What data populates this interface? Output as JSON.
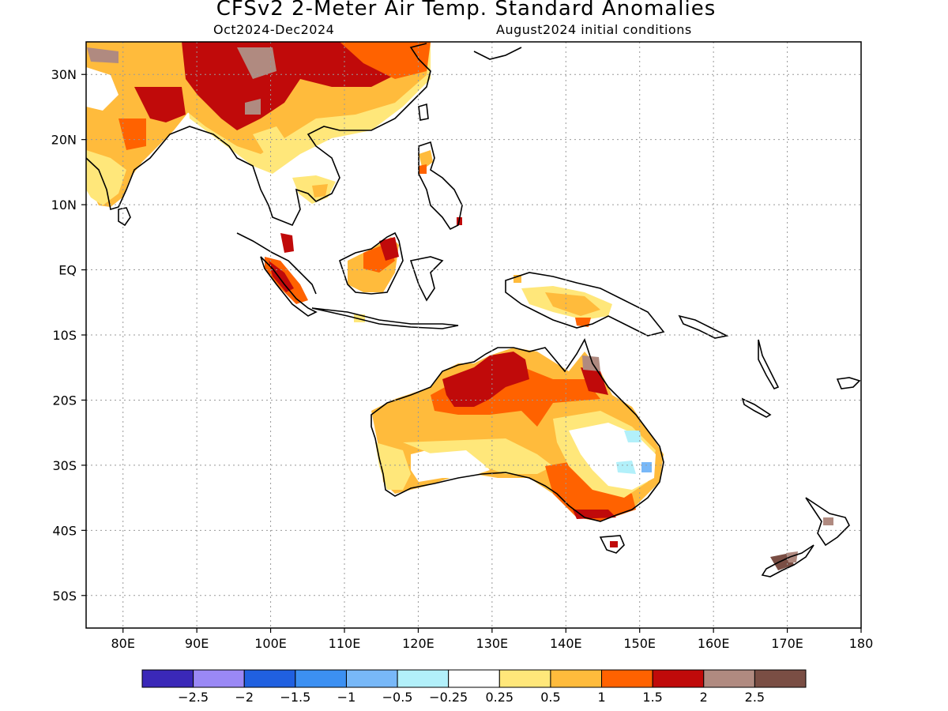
{
  "title": "CFSv2 2-Meter Air Temp. Standard Anomalies",
  "period": "Oct2024-Dec2024",
  "initial_conditions": "August2024 initial conditions",
  "map": {
    "lon_range": [
      75,
      180
    ],
    "lat_range": [
      -55,
      35
    ],
    "lon_ticks": [
      "80E",
      "90E",
      "100E",
      "110E",
      "120E",
      "130E",
      "140E",
      "150E",
      "160E",
      "170E",
      "180"
    ],
    "lat_ticks": [
      "30N",
      "20N",
      "10N",
      "EQ",
      "10S",
      "20S",
      "30S",
      "40S",
      "50S"
    ],
    "gridlines": "dotted"
  },
  "colorbar": {
    "colors": [
      "#3a28b8",
      "#9a88f5",
      "#2060e0",
      "#3c90f2",
      "#78b8f8",
      "#b2f0fa",
      "#ffffff",
      "#ffe77a",
      "#ffbb3c",
      "#ff6200",
      "#c00a0a",
      "#b08a80",
      "#7a4e44"
    ],
    "labels": [
      "−2.5",
      "−2",
      "−1.5",
      "−1",
      "−0.5",
      "−0.25",
      "0.25",
      "0.5",
      "1",
      "1.5",
      "2",
      "2.5"
    ]
  },
  "regions": [
    {
      "name": "India",
      "level": "1"
    },
    {
      "name": "Tibet / China",
      "level": "2"
    },
    {
      "name": "Southeast Asia",
      "level": "0.5"
    },
    {
      "name": "Borneo",
      "level": "1.5"
    },
    {
      "name": "Sumatra",
      "level": "2"
    },
    {
      "name": "New Guinea",
      "level": "1"
    },
    {
      "name": "Northern Australia",
      "level": "2"
    },
    {
      "name": "Central Australia",
      "level": "1"
    },
    {
      "name": "Southeast Australia",
      "level": "1.5"
    },
    {
      "name": "Eastern Australia",
      "level": "-0.25"
    },
    {
      "name": "New Zealand",
      "level": "2.5"
    }
  ]
}
